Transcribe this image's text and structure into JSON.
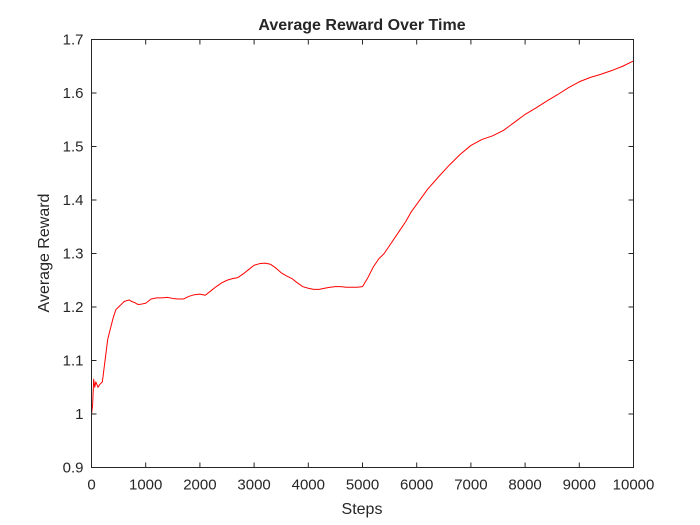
{
  "chart_data": {
    "type": "line",
    "title": "Average Reward Over Time",
    "xlabel": "Steps",
    "ylabel": "Average Reward",
    "xlim": [
      0,
      10000
    ],
    "ylim": [
      0.9,
      1.7
    ],
    "grid": false,
    "legend": "none",
    "xticks": [
      0,
      1000,
      2000,
      3000,
      4000,
      5000,
      6000,
      7000,
      8000,
      9000,
      10000
    ],
    "yticks": [
      0.9,
      1.0,
      1.1,
      1.2,
      1.3,
      1.4,
      1.5,
      1.6,
      1.7
    ],
    "xtick_labels": [
      "0",
      "1000",
      "2000",
      "3000",
      "4000",
      "5000",
      "6000",
      "7000",
      "8000",
      "9000",
      "10000"
    ],
    "ytick_labels": [
      "0.9",
      "1",
      "1.1",
      "1.2",
      "1.3",
      "1.4",
      "1.5",
      "1.6",
      "1.7"
    ],
    "series": [
      {
        "color": "#ff0000",
        "x": [
          0,
          20,
          40,
          60,
          80,
          100,
          120,
          150,
          200,
          250,
          300,
          350,
          400,
          450,
          500,
          550,
          600,
          650,
          700,
          750,
          800,
          850,
          900,
          1000,
          1100,
          1200,
          1300,
          1400,
          1500,
          1600,
          1700,
          1800,
          1900,
          2000,
          2100,
          2200,
          2300,
          2400,
          2500,
          2600,
          2700,
          2800,
          2900,
          3000,
          3100,
          3200,
          3300,
          3400,
          3500,
          3600,
          3700,
          3800,
          3900,
          4000,
          4100,
          4200,
          4300,
          4400,
          4500,
          4600,
          4700,
          4800,
          4900,
          5000,
          5100,
          5200,
          5300,
          5400,
          5500,
          5600,
          5700,
          5800,
          5900,
          6000,
          6200,
          6400,
          6600,
          6800,
          7000,
          7200,
          7400,
          7600,
          7800,
          8000,
          8200,
          8400,
          8600,
          8800,
          9000,
          9200,
          9400,
          9600,
          9800,
          10000
        ],
        "y": [
          1.0,
          1.015,
          1.065,
          1.05,
          1.06,
          1.055,
          1.05,
          1.055,
          1.06,
          1.1,
          1.14,
          1.16,
          1.18,
          1.195,
          1.2,
          1.205,
          1.21,
          1.212,
          1.213,
          1.21,
          1.208,
          1.205,
          1.205,
          1.207,
          1.215,
          1.217,
          1.217,
          1.218,
          1.216,
          1.215,
          1.215,
          1.22,
          1.223,
          1.224,
          1.222,
          1.23,
          1.238,
          1.245,
          1.25,
          1.253,
          1.255,
          1.262,
          1.27,
          1.278,
          1.281,
          1.282,
          1.28,
          1.273,
          1.264,
          1.258,
          1.253,
          1.245,
          1.238,
          1.235,
          1.233,
          1.233,
          1.235,
          1.237,
          1.238,
          1.238,
          1.237,
          1.237,
          1.237,
          1.238,
          1.255,
          1.275,
          1.29,
          1.3,
          1.315,
          1.33,
          1.345,
          1.36,
          1.378,
          1.392,
          1.42,
          1.443,
          1.465,
          1.485,
          1.502,
          1.513,
          1.52,
          1.53,
          1.545,
          1.56,
          1.572,
          1.585,
          1.597,
          1.61,
          1.621,
          1.629,
          1.635,
          1.642,
          1.65,
          1.66
        ]
      }
    ]
  }
}
